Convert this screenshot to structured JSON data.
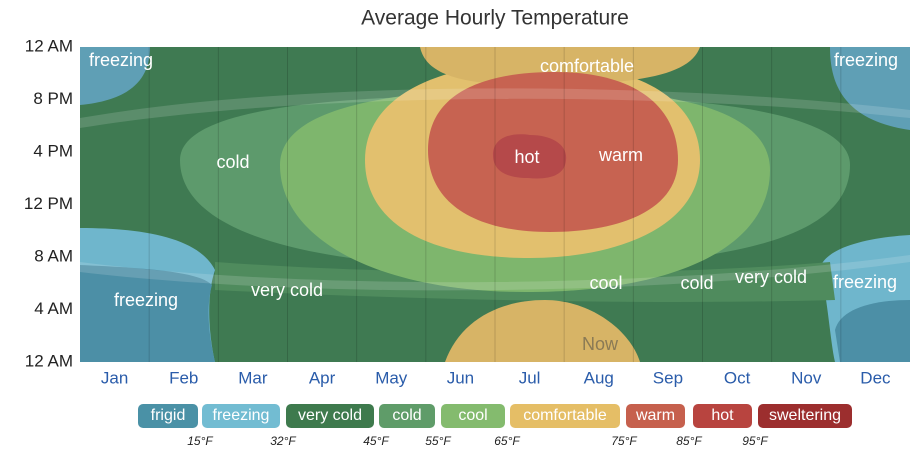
{
  "title": "Average Hourly Temperature",
  "y_axis_labels": [
    "12 AM",
    "8 PM",
    "4 PM",
    "12 PM",
    "8 AM",
    "4 AM",
    "12 AM"
  ],
  "months": [
    "Jan",
    "Feb",
    "Mar",
    "Apr",
    "May",
    "Jun",
    "Jul",
    "Aug",
    "Sep",
    "Oct",
    "Nov",
    "Dec"
  ],
  "region_labels": [
    "freezing",
    "freezing",
    "comfortable",
    "cold",
    "hot",
    "warm",
    "cool",
    "cold",
    "very cold",
    "freezing",
    "freezing",
    "very cold",
    "Now"
  ],
  "legend": [
    {
      "label": "frigid",
      "color": "#4a91a6"
    },
    {
      "label": "freezing",
      "color": "#72bcd2"
    },
    {
      "label": "very cold",
      "color": "#3e7a4d"
    },
    {
      "label": "cold",
      "color": "#5f9c69"
    },
    {
      "label": "cool",
      "color": "#84bb6e"
    },
    {
      "label": "comfortable",
      "color": "#e5be66"
    },
    {
      "label": "warm",
      "color": "#c6604d"
    },
    {
      "label": "hot",
      "color": "#b8443f"
    },
    {
      "label": "sweltering",
      "color": "#9c2e2e"
    }
  ],
  "thresholds": [
    "15°F",
    "32°F",
    "45°F",
    "55°F",
    "65°F",
    "75°F",
    "85°F",
    "95°F"
  ]
}
